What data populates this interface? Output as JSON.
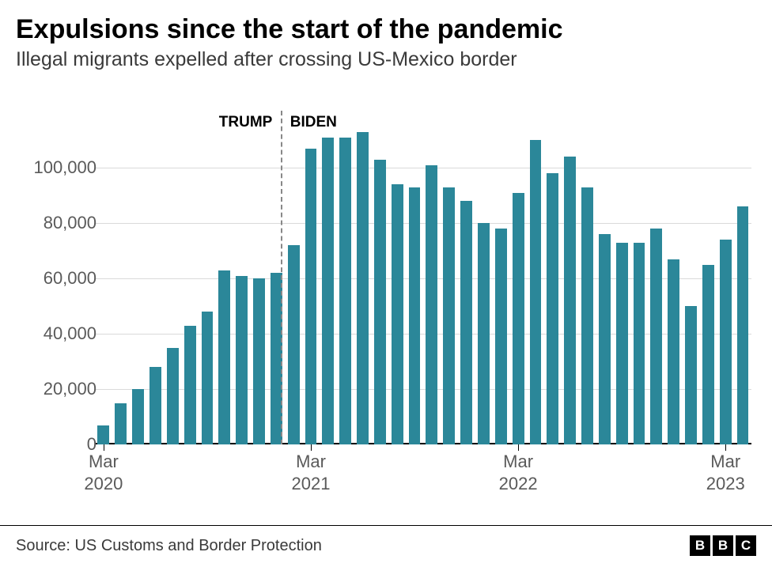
{
  "title": "Expulsions since the start of the pandemic",
  "subtitle": "Illegal migrants expelled after crossing US-Mexico border",
  "source": "Source: US Customs and Border Protection",
  "logo": [
    "B",
    "B",
    "C"
  ],
  "chart": {
    "type": "bar",
    "bar_color": "#2b8799",
    "background_color": "#ffffff",
    "grid_color": "#dadada",
    "baseline_color": "#000000",
    "text_color": "#5a5a5a",
    "title_fontsize": 34,
    "subtitle_fontsize": 25,
    "axis_fontsize": 22,
    "annotation_fontsize": 19,
    "ylim": [
      0,
      120000
    ],
    "yticks": [
      0,
      20000,
      40000,
      60000,
      80000,
      100000
    ],
    "ytick_labels": [
      "0",
      "20,000",
      "40,000",
      "60,000",
      "80,000",
      "100,000"
    ],
    "bar_width_ratio": 0.68,
    "divider_after_index": 10,
    "annotations": {
      "left": "TRUMP",
      "right": "BIDEN"
    },
    "xticks": [
      {
        "index": 0,
        "line1": "Mar",
        "line2": "2020"
      },
      {
        "index": 12,
        "line1": "Mar",
        "line2": "2021"
      },
      {
        "index": 24,
        "line1": "Mar",
        "line2": "2022"
      },
      {
        "index": 36,
        "line1": "Mar",
        "line2": "2023"
      }
    ],
    "values": [
      7000,
      15000,
      20000,
      28000,
      35000,
      43000,
      48000,
      63000,
      61000,
      60000,
      62000,
      72000,
      107000,
      111000,
      111000,
      113000,
      103000,
      94000,
      93000,
      101000,
      93000,
      88000,
      80000,
      78000,
      91000,
      110000,
      98000,
      104000,
      93000,
      76000,
      73000,
      73000,
      78000,
      67000,
      50000,
      65000,
      74000,
      86000
    ]
  }
}
